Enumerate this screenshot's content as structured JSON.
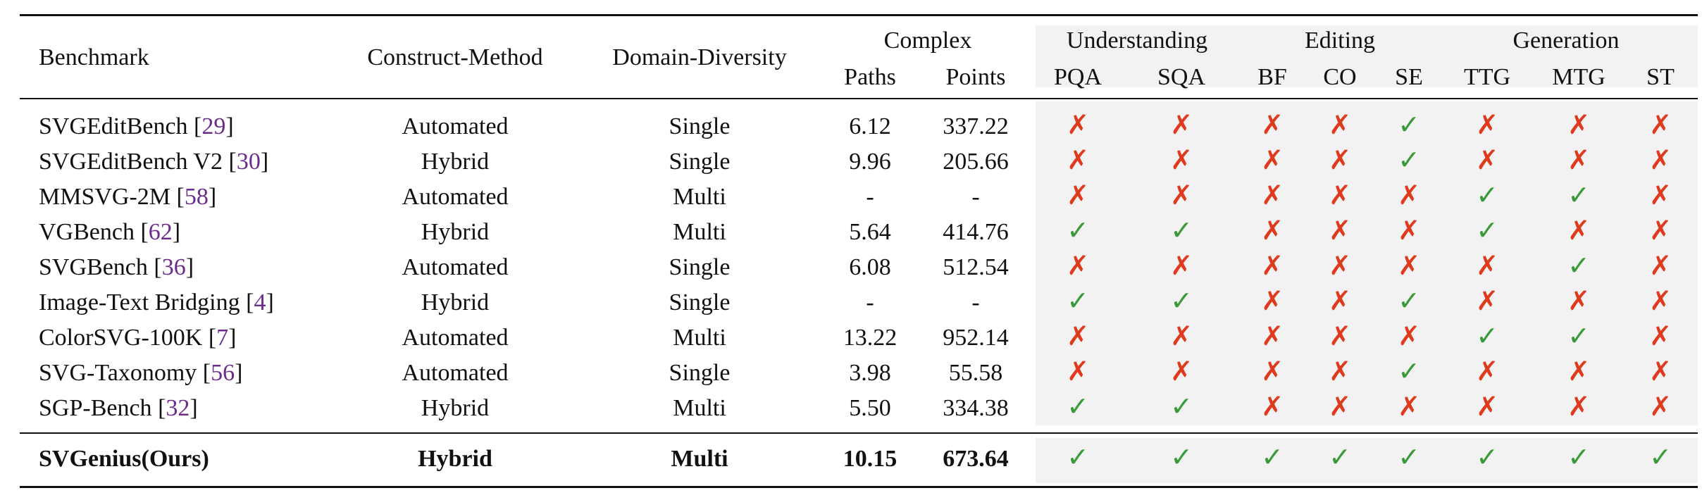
{
  "header": {
    "benchmark": "Benchmark",
    "construct_method": "Construct-Method",
    "domain_diversity": "Domain-Diversity",
    "complex": "Complex",
    "paths": "Paths",
    "points": "Points",
    "understanding": "Understanding",
    "editing": "Editing",
    "generation": "Generation",
    "pqa": "PQA",
    "sqa": "SQA",
    "bf": "BF",
    "co": "CO",
    "se": "SE",
    "ttg": "TTG",
    "mtg": "MTG",
    "st": "ST"
  },
  "symbols": {
    "check": "✓",
    "cross": "✗"
  },
  "colors": {
    "check": "#3a9a3a",
    "cross": "#e03a1e",
    "citation": "#6b2c8c",
    "shade": "#f2f2f2"
  },
  "rows": [
    {
      "name": "SVGEditBench",
      "cite": "29",
      "method": "Automated",
      "domain": "Single",
      "paths": "6.12",
      "points": "337.22",
      "flags": [
        0,
        0,
        0,
        0,
        1,
        0,
        0,
        0
      ]
    },
    {
      "name": "SVGEditBench V2",
      "cite": "30",
      "method": "Hybrid",
      "domain": "Single",
      "paths": "9.96",
      "points": "205.66",
      "flags": [
        0,
        0,
        0,
        0,
        1,
        0,
        0,
        0
      ]
    },
    {
      "name": "MMSVG-2M",
      "cite": "58",
      "method": "Automated",
      "domain": "Multi",
      "paths": "-",
      "points": "-",
      "flags": [
        0,
        0,
        0,
        0,
        0,
        1,
        1,
        0
      ]
    },
    {
      "name": "VGBench",
      "cite": "62",
      "method": "Hybrid",
      "domain": "Multi",
      "paths": "5.64",
      "points": "414.76",
      "flags": [
        1,
        1,
        0,
        0,
        0,
        1,
        0,
        0
      ]
    },
    {
      "name": "SVGBench",
      "cite": "36",
      "method": "Automated",
      "domain": "Single",
      "paths": "6.08",
      "points": "512.54",
      "flags": [
        0,
        0,
        0,
        0,
        0,
        0,
        1,
        0
      ]
    },
    {
      "name": "Image-Text Bridging",
      "cite": "4",
      "method": "Hybrid",
      "domain": "Single",
      "paths": "-",
      "points": "-",
      "flags": [
        1,
        1,
        0,
        0,
        1,
        0,
        0,
        0
      ]
    },
    {
      "name": "ColorSVG-100K",
      "cite": "7",
      "method": "Automated",
      "domain": "Multi",
      "paths": "13.22",
      "points": "952.14",
      "flags": [
        0,
        0,
        0,
        0,
        0,
        1,
        1,
        0
      ]
    },
    {
      "name": "SVG-Taxonomy",
      "cite": "56",
      "method": "Automated",
      "domain": "Single",
      "paths": "3.98",
      "points": "55.58",
      "flags": [
        0,
        0,
        0,
        0,
        1,
        0,
        0,
        0
      ]
    },
    {
      "name": "SGP-Bench",
      "cite": "32",
      "method": "Hybrid",
      "domain": "Multi",
      "paths": "5.50",
      "points": "334.38",
      "flags": [
        1,
        1,
        0,
        0,
        0,
        0,
        0,
        0
      ]
    }
  ],
  "ours": {
    "name": "SVGenius(Ours)",
    "method": "Hybrid",
    "domain": "Multi",
    "paths": "10.15",
    "points": "673.64",
    "flags": [
      1,
      1,
      1,
      1,
      1,
      1,
      1,
      1
    ]
  }
}
